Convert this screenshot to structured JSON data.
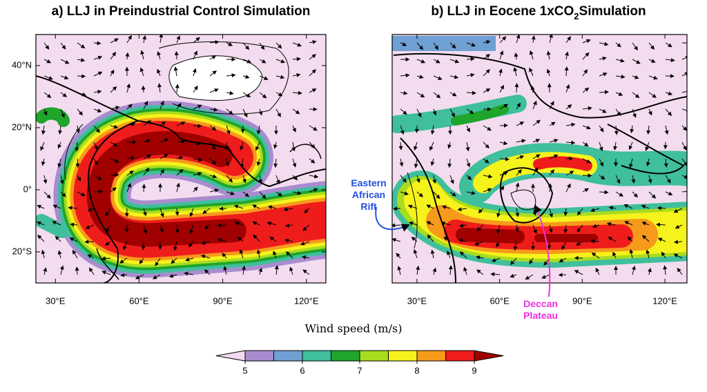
{
  "panels": [
    {
      "title": [
        "a) LLJ in Preindustrial Control Simulation"
      ],
      "xlim": [
        23,
        127
      ],
      "ylim": [
        -30,
        50
      ],
      "xticks": [
        {
          "value": 30,
          "label": "30°E"
        },
        {
          "value": 60,
          "label": "60°E"
        },
        {
          "value": 90,
          "label": "90°E"
        },
        {
          "value": 120,
          "label": "120°E"
        }
      ],
      "yticks": [
        {
          "value": 40,
          "label": "40°N"
        },
        {
          "value": 20,
          "label": "20°N"
        },
        {
          "value": 0,
          "label": "0°"
        },
        {
          "value": -20,
          "label": "20°S"
        }
      ]
    },
    {
      "title": [
        "b) LLJ in Eocene 1xCO",
        "2",
        "Simulation"
      ],
      "xlim": [
        21,
        128
      ],
      "xticks": [
        {
          "value": 30,
          "label": "30°E"
        },
        {
          "value": 60,
          "label": "60°E"
        },
        {
          "value": 90,
          "label": "90°E"
        },
        {
          "value": 120,
          "label": "120°E"
        }
      ]
    }
  ],
  "colorbar": {
    "label": "Wind speed (m/s)",
    "levels": [
      5,
      5.5,
      6,
      6.5,
      7,
      7.5,
      8,
      8.5,
      9
    ],
    "colors": [
      "#f3dcef",
      "#a98ccf",
      "#6fa0d3",
      "#3fbf9c",
      "#1fa52a",
      "#a8dc1f",
      "#f6f21c",
      "#f79a1c",
      "#ef1c1c",
      "#a00000"
    ],
    "ticks": [
      5,
      6,
      7,
      8,
      9
    ]
  },
  "annotations": [
    {
      "lines": [
        "Eastern",
        "African",
        "Rift"
      ],
      "color": "#1f4fe0"
    },
    {
      "lines": [
        "Deccan",
        "Plateau"
      ],
      "color": "#f030e0"
    }
  ]
}
